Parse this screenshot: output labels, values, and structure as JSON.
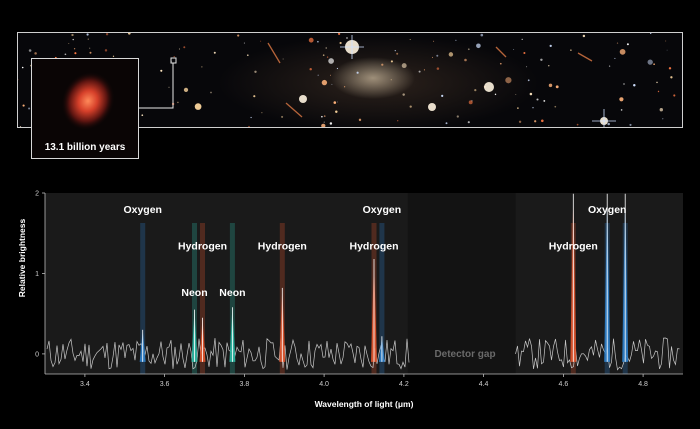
{
  "inset": {
    "caption": "13.1 billion years"
  },
  "chart_data": {
    "type": "line",
    "xlabel": "Wavelength of light (μm)",
    "ylabel": "Relative brightness",
    "xlim": [
      3.3,
      4.9
    ],
    "ylim": [
      -0.25,
      2.0
    ],
    "xticks": [
      3.4,
      3.6,
      3.8,
      4.0,
      4.2,
      4.4,
      4.6,
      4.8
    ],
    "yticks": [
      0,
      1,
      2
    ],
    "gap": {
      "range": [
        4.21,
        4.48
      ],
      "label": "Detector gap"
    },
    "lines": [
      {
        "element": "Oxygen",
        "x": 3.545,
        "peak": 0.3,
        "color": "#2f7fc9",
        "label_y": 1.75
      },
      {
        "element": "Neon",
        "x": 3.675,
        "peak": 0.55,
        "color": "#2fb8a4",
        "label_y": 0.72
      },
      {
        "element": "Hydrogen",
        "x": 3.695,
        "peak": 0.45,
        "color": "#e0552e",
        "label_y": 1.3
      },
      {
        "element": "Neon",
        "x": 3.77,
        "peak": 0.58,
        "color": "#2fb8a4",
        "label_y": 0.72
      },
      {
        "element": "Hydrogen",
        "x": 3.895,
        "peak": 0.82,
        "color": "#e0552e",
        "label_y": 1.3
      },
      {
        "element": "Hydrogen",
        "x": 4.125,
        "peak": 1.18,
        "color": "#e0552e",
        "label_y": 1.3
      },
      {
        "element": "Oxygen",
        "x": 4.145,
        "peak": 0.22,
        "color": "#2f7fc9",
        "label_y": 1.75
      },
      {
        "element": "Hydrogen",
        "x": 4.625,
        "peak": 1.99,
        "color": "#e0552e",
        "label_y": 1.3
      },
      {
        "element": "Oxygen",
        "x": 4.71,
        "peak": 1.99,
        "color": "#2f7fc9",
        "label_y": 1.75
      },
      {
        "element": "Oxygen",
        "x": 4.755,
        "peak": 1.99,
        "color": "#2f7fc9",
        "label_y": 1.75
      }
    ]
  }
}
